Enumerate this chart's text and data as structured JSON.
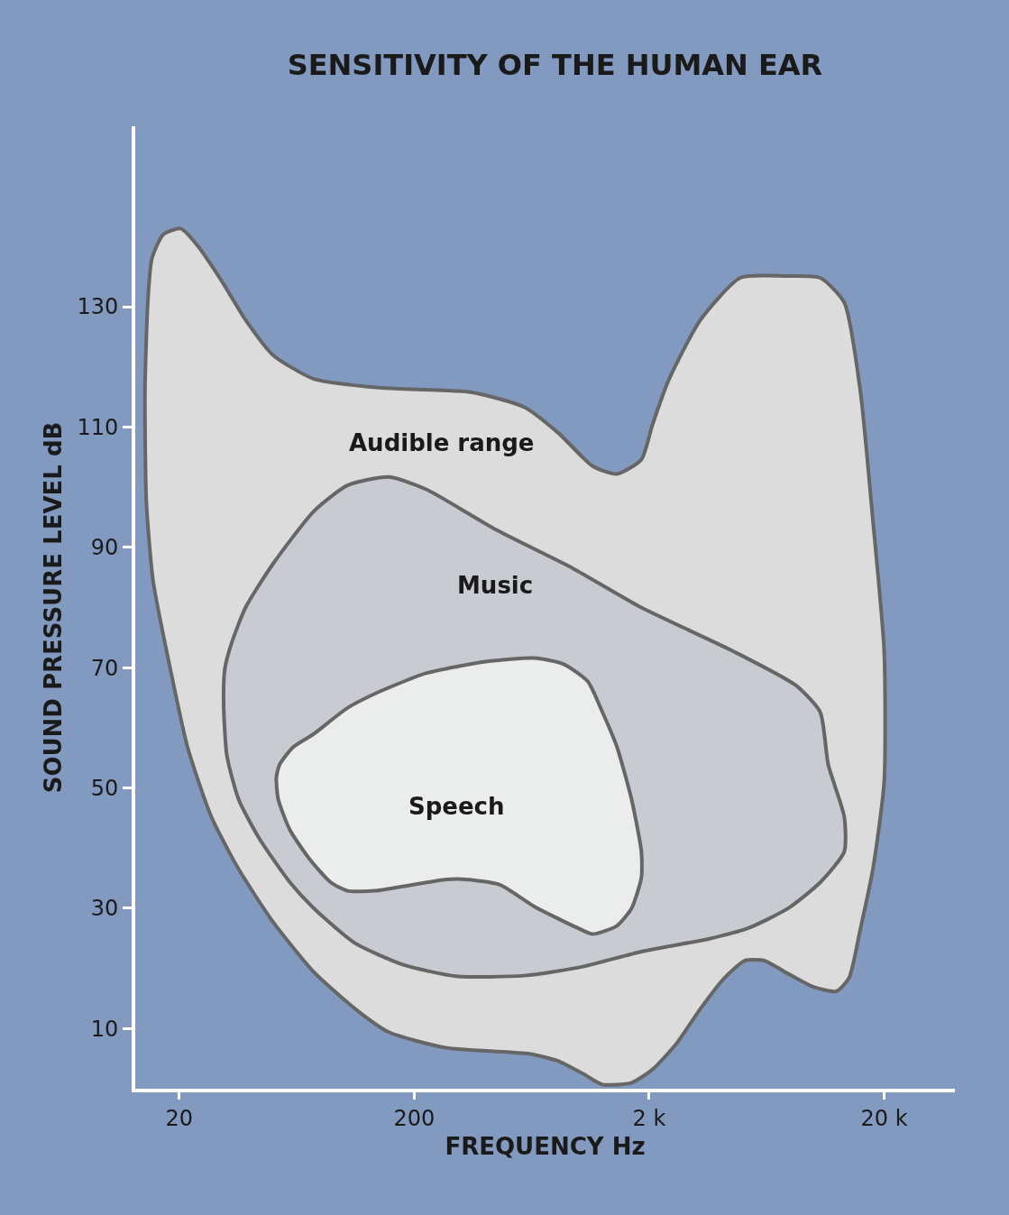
{
  "chart_data": {
    "type": "area",
    "title": "SENSITIVITY OF THE HUMAN EAR",
    "xlabel": "FREQUENCY Hz",
    "ylabel": "SOUND PRESSURE LEVEL dB",
    "log": "x",
    "line_style": "solid",
    "xlim": [
      13,
      40000
    ],
    "ylim": [
      0,
      160
    ],
    "xticks": [
      20,
      200,
      {
        "value": 2000,
        "label": "2 k"
      },
      {
        "value": 20000,
        "label": "20 k"
      }
    ],
    "yticks": [
      10,
      30,
      50,
      70,
      90,
      110,
      130
    ],
    "series": [
      {
        "name": "Audible range",
        "color": "#dcdcdc",
        "x": [
          15.3,
          17.1,
          20.3,
          24.0,
          30.3,
          38.3,
          50.0,
          74.8,
          146,
          348,
          589,
          822,
          1149,
          1459,
          1853,
          2066,
          2414,
          3303,
          4887,
          7568,
          10690,
          13530,
          15810,
          17910,
          20000,
          20000,
          17910,
          15810,
          14170,
          12500,
          9886,
          7816,
          6176,
          5118,
          4178,
          3303,
          2612,
          2066,
          1683,
          1265,
          1045,
          822,
          617,
          274,
          156,
          112,
          74.8,
          50.0,
          35.8,
          27.4,
          21.7,
          18.3,
          15.5,
          14.5,
          14.3,
          14.7,
          15.3
        ],
        "values": [
          138.0,
          142.0,
          143.0,
          140.1,
          134.3,
          127.8,
          122.0,
          118.0,
          116.5,
          115.8,
          113.3,
          109.0,
          103.5,
          102.2,
          104.6,
          110.4,
          117.7,
          127.8,
          134.8,
          135.1,
          134.8,
          130.7,
          116.2,
          94.5,
          72.8,
          51.0,
          36.5,
          26.4,
          18.4,
          16.2,
          17.0,
          19.1,
          21.3,
          21.3,
          18.4,
          13.3,
          7.5,
          3.2,
          1.0,
          0.7,
          2.5,
          4.6,
          5.8,
          6.8,
          9.4,
          13.3,
          19.4,
          27.8,
          36.5,
          45.2,
          56.8,
          69.9,
          84.3,
          97.4,
          116.2,
          130.7,
          138.0
        ]
      },
      {
        "name": "Music",
        "color": "#c8cbd2",
        "x": [
          31.3,
          33.5,
          38.3,
          50.0,
          74.8,
          104,
          156,
          226,
          442,
          948,
          1853,
          4519,
          8453,
          10690,
          11560,
          13530,
          13530,
          10690,
          7816,
          5284,
          3573,
          1853,
          1045,
          589,
          302,
          180,
          112,
          74.8,
          59.2,
          43.8,
          35.8,
          31.9,
          30.9,
          31.3
        ],
        "values": [
          69.9,
          74.2,
          80.0,
          87.2,
          96.0,
          100.3,
          101.7,
          99.6,
          93.0,
          86.5,
          80.0,
          72.8,
          67.0,
          62.6,
          53.9,
          45.2,
          39.4,
          34.3,
          30.0,
          26.7,
          24.9,
          22.8,
          20.3,
          18.8,
          18.7,
          20.6,
          24.2,
          30.0,
          34.3,
          41.6,
          48.1,
          55.4,
          64.1,
          69.9
        ]
      },
      {
        "name": "Speech",
        "color": "#ebecec",
        "x": [
          53.5,
          61.1,
          74.8,
          104,
          146,
          226,
          402,
          648,
          861,
          1096,
          1265,
          1459,
          1683,
          1853,
          1853,
          1683,
          1459,
          1149,
          995,
          648,
          463,
          332,
          274,
          196,
          136,
          104,
          88.3,
          72.3,
          59.2,
          52.8,
          51.8,
          53.5
        ],
        "values": [
          53.9,
          56.8,
          59.0,
          63.3,
          66.2,
          69.1,
          71.0,
          71.6,
          70.6,
          67.7,
          62.6,
          56.8,
          48.1,
          39.4,
          35.1,
          30.0,
          27.1,
          25.7,
          26.7,
          30.3,
          33.9,
          34.8,
          34.8,
          33.9,
          32.9,
          32.9,
          34.3,
          38.0,
          43.0,
          48.1,
          51.7,
          53.9
        ]
      }
    ]
  }
}
